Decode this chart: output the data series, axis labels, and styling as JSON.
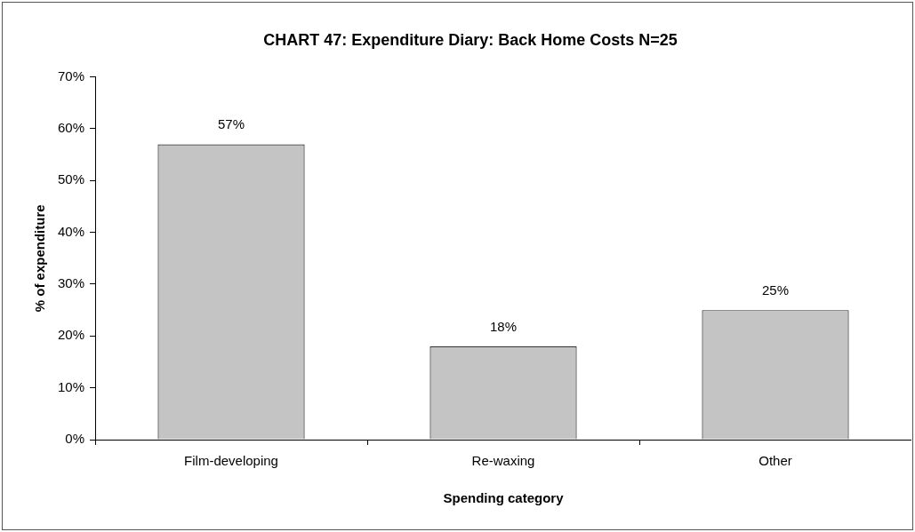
{
  "chart_data": {
    "type": "bar",
    "title": "CHART 47: Expenditure Diary: Back Home Costs N=25",
    "xlabel": "Spending category",
    "ylabel": "% of expenditure",
    "categories": [
      "Film-developing",
      "Re-waxing",
      "Other"
    ],
    "values": [
      57,
      18,
      25
    ],
    "color": "#c4c4c4",
    "value_labels": [
      "57%",
      "18%",
      "25%"
    ],
    "ylim": [
      0,
      70
    ],
    "yticks": [
      {
        "value": 0,
        "label": "0%"
      },
      {
        "value": 10,
        "label": "10%"
      },
      {
        "value": 20,
        "label": "20%"
      },
      {
        "value": 30,
        "label": "30%"
      },
      {
        "value": 40,
        "label": "40%"
      },
      {
        "value": 50,
        "label": "50%"
      },
      {
        "value": 60,
        "label": "60%"
      },
      {
        "value": 70,
        "label": "70%"
      }
    ],
    "legend": false
  }
}
